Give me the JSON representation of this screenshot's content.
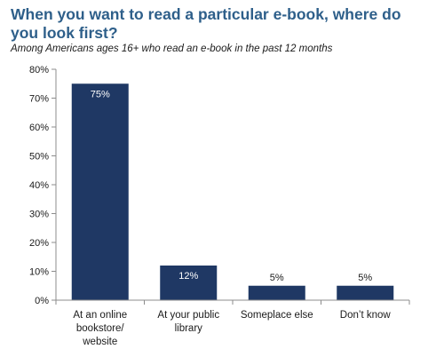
{
  "chart_data": {
    "type": "bar",
    "title": "When you want to read a particular e-book, where do you look first?",
    "subtitle": "Among Americans ages 16+ who read an e-book in the past 12 months",
    "categories": [
      "At an online bookstore/ website",
      "At your public library",
      "Someplace else",
      "Don’t know"
    ],
    "category_lines": [
      [
        "At an online",
        "bookstore/",
        "website"
      ],
      [
        "At your public",
        "library"
      ],
      [
        "Someplace else"
      ],
      [
        "Don’t know"
      ]
    ],
    "values": [
      75,
      12,
      5,
      5
    ],
    "data_labels": [
      "75%",
      "12%",
      "5%",
      "5%"
    ],
    "ylim": [
      0,
      80
    ],
    "yticks": [
      0,
      10,
      20,
      30,
      40,
      50,
      60,
      70,
      80
    ],
    "ytick_labels": [
      "0%",
      "10%",
      "20%",
      "30%",
      "40%",
      "50%",
      "60%",
      "70%",
      "80%"
    ],
    "xlabel": "",
    "ylabel": "",
    "grid": false,
    "bar_color": "#1f3864"
  }
}
